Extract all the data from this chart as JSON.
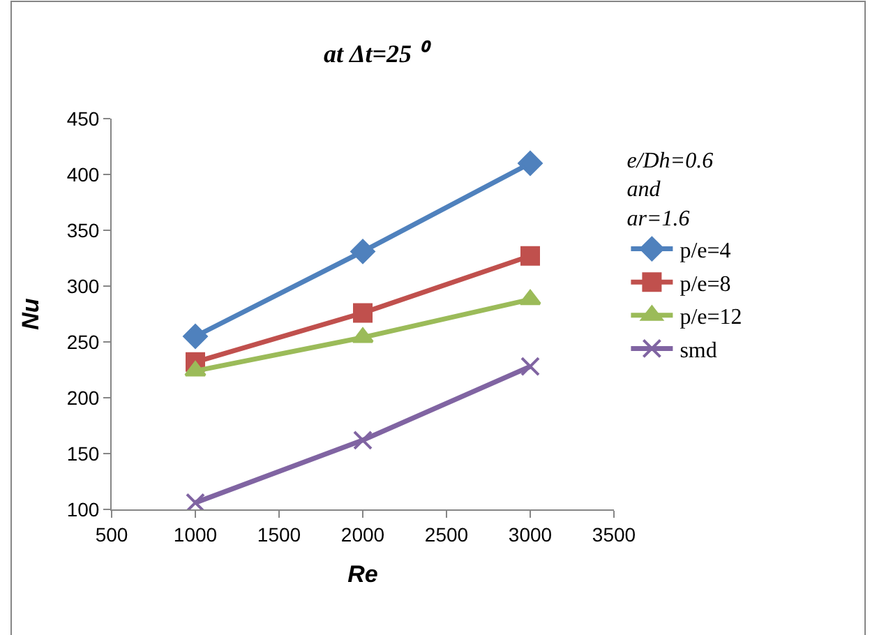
{
  "chart_data": {
    "type": "line",
    "title": "at Δt=25 ⁰",
    "xlabel": "Re",
    "ylabel": "Nu",
    "legend_title": "e/Dh=0.6\nand\nar=1.6",
    "x": [
      1000,
      2000,
      3000
    ],
    "series": [
      {
        "name": "p/e=4",
        "color": "#4f81bd",
        "marker": "diamond",
        "values": [
          255,
          331,
          410
        ]
      },
      {
        "name": "p/e=8",
        "color": "#c0504d",
        "marker": "square",
        "values": [
          232,
          276,
          327
        ]
      },
      {
        "name": "p/e=12",
        "color": "#9bbb59",
        "marker": "triangle",
        "values": [
          224,
          254,
          288
        ]
      },
      {
        "name": "smd",
        "color": "#8064a2",
        "marker": "cross",
        "values": [
          106,
          162,
          228
        ]
      }
    ],
    "xlim": [
      500,
      3500
    ],
    "xticks": [
      500,
      1000,
      1500,
      2000,
      2500,
      3000,
      3500
    ],
    "ylim": [
      100,
      450
    ],
    "yticks": [
      100,
      150,
      200,
      250,
      300,
      350,
      400,
      450
    ],
    "legend": "right",
    "line_style": "solid"
  }
}
